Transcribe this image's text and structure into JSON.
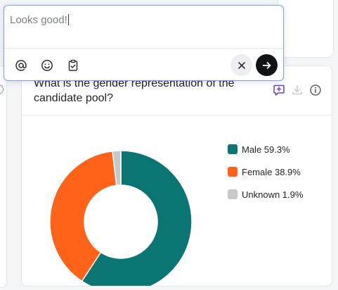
{
  "comment": {
    "text": "Looks good!"
  },
  "card": {
    "title": "What is the gender representation of the candidate pool?"
  },
  "colors": {
    "male": "#0b7572",
    "female": "#ff6319",
    "unknown": "#c8c8c8",
    "accent_purple": "#6b3fd1"
  },
  "icons": {
    "mention": "at-sign-icon",
    "emoji": "smile-icon",
    "clipboard": "clipboard-icon",
    "cancel": "close-icon",
    "send": "arrow-right-icon",
    "add_comment": "comment-plus-icon",
    "download": "download-icon",
    "info": "info-icon"
  },
  "chart_data": {
    "type": "pie",
    "donut": true,
    "categories": [
      "Male",
      "Female",
      "Unknown"
    ],
    "values": [
      59.3,
      38.9,
      1.9
    ],
    "legend_labels": [
      "Male 59.3%",
      "Female 38.9%",
      "Unknown 1.9%"
    ],
    "colors": [
      "#0b7572",
      "#ff6319",
      "#c8c8c8"
    ],
    "legend_position": "right"
  }
}
